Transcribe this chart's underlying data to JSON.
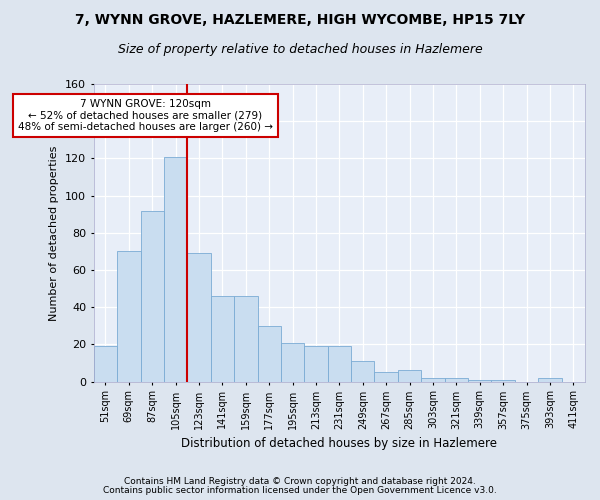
{
  "title1": "7, WYNN GROVE, HAZLEMERE, HIGH WYCOMBE, HP15 7LY",
  "title2": "Size of property relative to detached houses in Hazlemere",
  "xlabel": "Distribution of detached houses by size in Hazlemere",
  "ylabel": "Number of detached properties",
  "categories": [
    "51sqm",
    "69sqm",
    "87sqm",
    "105sqm",
    "123sqm",
    "141sqm",
    "159sqm",
    "177sqm",
    "195sqm",
    "213sqm",
    "231sqm",
    "249sqm",
    "267sqm",
    "285sqm",
    "303sqm",
    "321sqm",
    "339sqm",
    "357sqm",
    "375sqm",
    "393sqm",
    "411sqm"
  ],
  "values": [
    19,
    70,
    92,
    121,
    69,
    46,
    46,
    30,
    21,
    19,
    19,
    11,
    5,
    6,
    2,
    2,
    1,
    1,
    0,
    2,
    0
  ],
  "bar_color": "#c9ddf0",
  "bar_edge_color": "#7aabd4",
  "vline_x": 3.5,
  "vline_color": "#cc0000",
  "annotation_text_line1": "7 WYNN GROVE: 120sqm",
  "annotation_text_line2": "← 52% of detached houses are smaller (279)",
  "annotation_text_line3": "48% of semi-detached houses are larger (260) →",
  "annotation_box_color": "white",
  "annotation_box_edge": "#cc0000",
  "ylim": [
    0,
    160
  ],
  "yticks": [
    0,
    20,
    40,
    60,
    80,
    100,
    120,
    140,
    160
  ],
  "footer1": "Contains HM Land Registry data © Crown copyright and database right 2024.",
  "footer2": "Contains public sector information licensed under the Open Government Licence v3.0.",
  "background_color": "#dde5ef",
  "plot_background": "#e8eef8",
  "grid_color": "white",
  "title_fontsize": 10,
  "subtitle_fontsize": 9,
  "annotation_fontsize": 7.5,
  "axis_label_fontsize": 8,
  "xlabel_fontsize": 8.5,
  "tick_fontsize": 7,
  "footer_fontsize": 6.5
}
